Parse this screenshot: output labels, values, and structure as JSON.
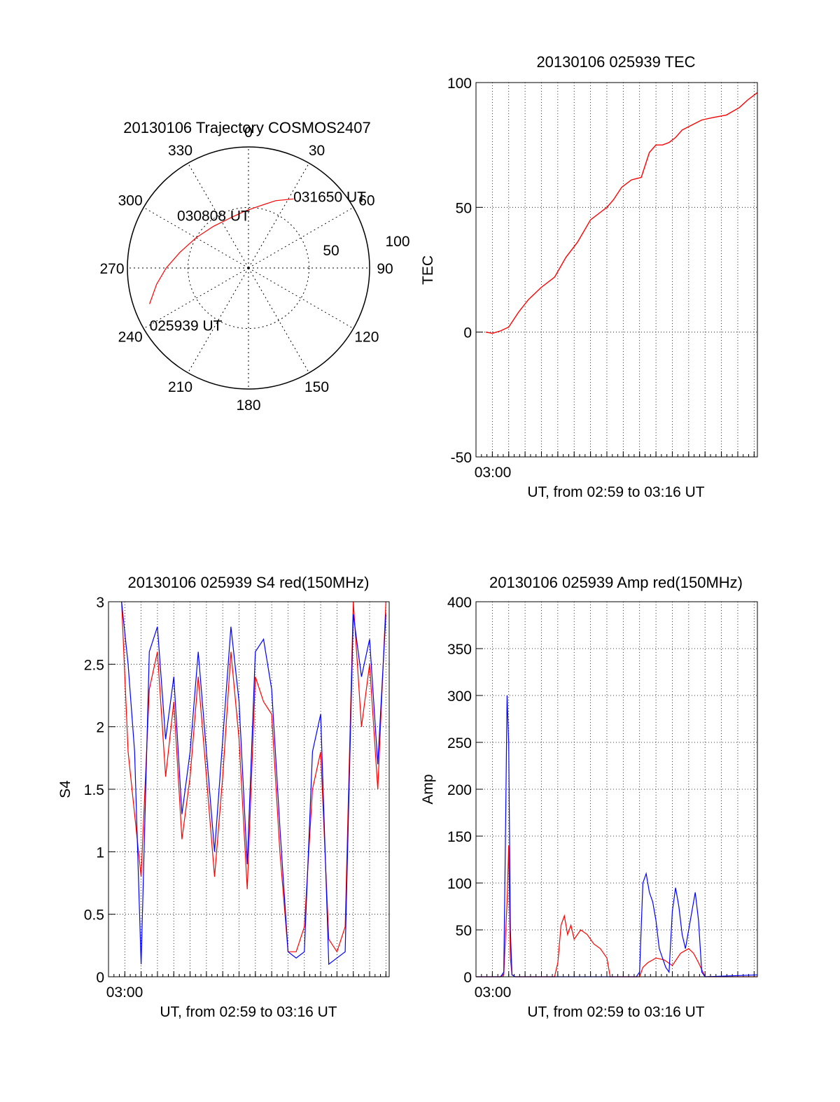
{
  "chart_data": [
    {
      "id": "trajectory",
      "type": "polar",
      "title": "20130106 Trajectory COSMOS2407",
      "azimuth_labels": [
        "0",
        "30",
        "60",
        "90",
        "120",
        "150",
        "180",
        "210",
        "240",
        "270",
        "300",
        "330"
      ],
      "radial_labels": [
        "50",
        "100"
      ],
      "rlim": [
        0,
        100
      ],
      "grid": true,
      "track": {
        "color": "#ff0000",
        "points_az_r": [
          [
            250,
            87
          ],
          [
            260,
            77
          ],
          [
            270,
            68
          ],
          [
            283,
            58
          ],
          [
            300,
            50
          ],
          [
            320,
            45
          ],
          [
            340,
            44
          ],
          [
            356,
            47
          ],
          [
            10,
            52
          ],
          [
            22,
            60
          ],
          [
            33,
            68
          ]
        ]
      },
      "annotations": [
        {
          "text": "025939 UT",
          "az": 250,
          "r": 87
        },
        {
          "text": "030808 UT",
          "az": 320,
          "r": 45
        },
        {
          "text": "031650 UT",
          "az": 33,
          "r": 68
        }
      ]
    },
    {
      "id": "tec",
      "type": "line",
      "title": "20130106 025939 TEC",
      "ylabel": "TEC",
      "xlabel": "UT, from 02:59 to 03:16 UT",
      "xtick_labels": [
        "03:00"
      ],
      "xlim_minutes_after_0259": [
        0,
        17.2
      ],
      "ylim": [
        -50,
        100
      ],
      "yticks": [
        -50,
        0,
        50,
        100
      ],
      "grid": true,
      "series": [
        {
          "color": "#ff0000",
          "x": [
            0.6,
            1.0,
            1.5,
            2.0,
            2.6,
            3.2,
            4.0,
            4.8,
            5.5,
            6.2,
            7.0,
            7.6,
            8.0,
            8.4,
            8.9,
            9.5,
            10.1,
            10.6,
            11.0,
            11.4,
            11.8,
            12.2,
            12.6,
            13.2,
            13.8,
            14.5,
            15.3,
            16.1,
            16.6,
            17.2
          ],
          "y": [
            0,
            -0.5,
            0.5,
            2,
            8,
            13,
            18,
            22,
            30,
            36,
            45,
            48,
            50,
            53,
            58,
            61,
            62,
            72,
            75,
            75,
            76,
            78,
            81,
            83,
            85,
            86,
            87,
            90,
            93,
            96
          ]
        }
      ]
    },
    {
      "id": "s4",
      "type": "line",
      "title": "20130106 025939 S4 red(150MHz)",
      "ylabel": "S4",
      "xlabel": "UT, from 02:59 to 03:16 UT",
      "xtick_labels": [
        "03:00"
      ],
      "xlim_minutes_after_0259": [
        0,
        17.2
      ],
      "ylim": [
        0,
        3
      ],
      "yticks": [
        0,
        0.5,
        1,
        1.5,
        2,
        2.5,
        3
      ],
      "grid": true,
      "series": [
        {
          "color": "#ff0000",
          "x": [
            0.8,
            1.2,
            1.6,
            2.0,
            2.5,
            3.0,
            3.5,
            4.0,
            4.5,
            5.0,
            5.5,
            6.0,
            6.5,
            7.0,
            7.5,
            8.0,
            8.5,
            9.0,
            9.5,
            10.0,
            10.5,
            11.0,
            11.5,
            12.0,
            12.5,
            13.0,
            13.5,
            14.0,
            14.5,
            15.0,
            15.5,
            16.0,
            16.5,
            17.0
          ],
          "y": [
            3.0,
            1.8,
            1.3,
            0.8,
            2.3,
            2.6,
            1.6,
            2.2,
            1.1,
            1.6,
            2.4,
            1.6,
            0.8,
            1.6,
            2.6,
            1.9,
            0.7,
            2.4,
            2.2,
            2.1,
            1.0,
            0.2,
            0.2,
            0.4,
            1.5,
            1.8,
            0.3,
            0.2,
            0.4,
            3.0,
            2.0,
            2.5,
            1.5,
            3.0
          ]
        },
        {
          "color": "#0000ff",
          "x": [
            0.8,
            1.2,
            1.6,
            2.0,
            2.5,
            3.0,
            3.5,
            4.0,
            4.5,
            5.0,
            5.5,
            6.0,
            6.5,
            7.0,
            7.5,
            8.0,
            8.5,
            9.0,
            9.5,
            10.0,
            10.5,
            11.0,
            11.5,
            12.0,
            12.5,
            13.0,
            13.5,
            14.0,
            14.5,
            15.0,
            15.5,
            16.0,
            16.5,
            17.0
          ],
          "y": [
            3.0,
            2.5,
            1.8,
            0.1,
            2.6,
            2.8,
            1.9,
            2.4,
            1.3,
            1.8,
            2.6,
            1.8,
            1.0,
            1.9,
            2.8,
            2.2,
            0.9,
            2.6,
            2.7,
            2.3,
            1.2,
            0.2,
            0.15,
            0.2,
            1.8,
            2.1,
            0.1,
            0.15,
            0.2,
            2.9,
            2.4,
            2.7,
            1.7,
            2.9
          ]
        }
      ]
    },
    {
      "id": "amp",
      "type": "line",
      "title": "20130106 025939 Amp red(150MHz)",
      "ylabel": "Amp",
      "xlabel": "UT, from 02:59 to 03:16 UT",
      "xtick_labels": [
        "03:00"
      ],
      "xlim_minutes_after_0259": [
        0,
        17.2
      ],
      "ylim": [
        0,
        400
      ],
      "yticks": [
        0,
        50,
        100,
        150,
        200,
        250,
        300,
        350,
        400
      ],
      "grid": true,
      "series": [
        {
          "color": "#ff0000",
          "x": [
            0.0,
            1.5,
            1.7,
            1.9,
            2.0,
            2.1,
            2.2,
            2.4,
            4.8,
            5.0,
            5.2,
            5.4,
            5.6,
            5.8,
            6.0,
            6.4,
            6.8,
            7.2,
            7.6,
            8.0,
            8.2,
            10.0,
            10.2,
            10.5,
            11.0,
            11.5,
            12.0,
            12.5,
            13.0,
            13.3,
            13.6,
            14.0,
            17.2
          ],
          "y": [
            0,
            0,
            2,
            80,
            140,
            20,
            2,
            0,
            0,
            15,
            55,
            65,
            45,
            55,
            40,
            50,
            45,
            35,
            30,
            20,
            0,
            0,
            10,
            15,
            20,
            18,
            12,
            25,
            30,
            25,
            15,
            0,
            0
          ]
        },
        {
          "color": "#0000ff",
          "x": [
            0.0,
            1.5,
            1.7,
            1.8,
            1.9,
            2.0,
            2.1,
            2.2,
            2.4,
            5.0,
            9.8,
            10.0,
            10.2,
            10.4,
            10.6,
            10.8,
            11.0,
            11.2,
            11.4,
            11.6,
            11.8,
            12.0,
            12.2,
            12.4,
            12.6,
            12.8,
            13.0,
            13.2,
            13.4,
            13.6,
            13.8,
            14.0,
            17.2
          ],
          "y": [
            0,
            0,
            5,
            150,
            300,
            250,
            50,
            2,
            0,
            0,
            0,
            5,
            100,
            110,
            90,
            80,
            60,
            30,
            20,
            10,
            5,
            70,
            95,
            75,
            45,
            30,
            50,
            70,
            90,
            60,
            5,
            0,
            2
          ]
        }
      ]
    }
  ]
}
